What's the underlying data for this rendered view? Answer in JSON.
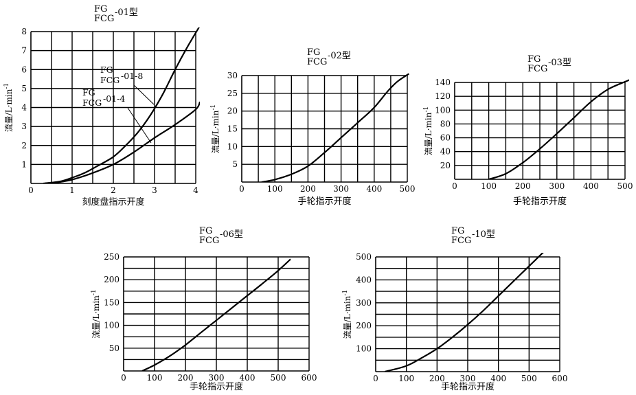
{
  "chart_data": [
    {
      "type": "line",
      "title": [
        "FG",
        "FCG",
        "-01型"
      ],
      "xlabel": "刻度盘指示开度",
      "ylabel": "流量/L·min",
      "ylabel_sup": "-1",
      "xlim": [
        0,
        4
      ],
      "ylim": [
        0,
        8
      ],
      "xticks": [
        0,
        1,
        2,
        3,
        4
      ],
      "yticks": [
        0,
        1,
        2,
        3,
        4,
        5,
        6,
        7,
        8
      ],
      "xtick_labels": [
        "0",
        "1",
        "2",
        "3",
        "4"
      ],
      "ytick_labels": [
        "",
        "1",
        "2",
        "3",
        "4",
        "5",
        "6",
        "7",
        "8"
      ],
      "grid_x": [
        0.5,
        1,
        1.5,
        2,
        2.5,
        3,
        3.5,
        4
      ],
      "grid_y": [
        1,
        2,
        3,
        4,
        5,
        6,
        7,
        8
      ],
      "grid": true,
      "series": [
        {
          "name": "FG FCG-01-8",
          "x": [
            0.3,
            0.7,
            1.0,
            1.3,
            1.6,
            2.0,
            2.3,
            2.6,
            2.9,
            3.2,
            3.5,
            3.8,
            4.1
          ],
          "y": [
            0,
            0.1,
            0.3,
            0.55,
            0.9,
            1.4,
            2.0,
            2.7,
            3.6,
            4.7,
            6.0,
            7.2,
            8.3
          ]
        },
        {
          "name": "FG FCG-01-4",
          "x": [
            0.5,
            1.0,
            1.5,
            2.0,
            2.5,
            3.0,
            3.5,
            4.0,
            4.1
          ],
          "y": [
            0,
            0.2,
            0.55,
            1.0,
            1.65,
            2.4,
            3.1,
            3.9,
            4.3
          ]
        }
      ],
      "annotations": [
        {
          "lines": [
            "FG",
            "FCG",
            "-01-8"
          ],
          "series": 0
        },
        {
          "lines": [
            "FG",
            "FCG",
            "-01-4"
          ],
          "series": 1
        }
      ]
    },
    {
      "type": "line",
      "title": [
        "FG",
        "FCG",
        "-02型"
      ],
      "xlabel": "手轮指示开度",
      "ylabel": "流量/L·min",
      "ylabel_sup": "-1",
      "xlim": [
        0,
        500
      ],
      "ylim": [
        0,
        30
      ],
      "xticks": [
        0,
        100,
        200,
        300,
        400,
        500
      ],
      "yticks": [
        0,
        5,
        10,
        15,
        20,
        25,
        30
      ],
      "xtick_labels": [
        "0",
        "100",
        "200",
        "300",
        "400",
        "500"
      ],
      "ytick_labels": [
        "",
        "5",
        "10",
        "15",
        "20",
        "25",
        "30"
      ],
      "grid_x": [
        50,
        100,
        150,
        200,
        250,
        300,
        350,
        400,
        450,
        500
      ],
      "grid_y": [
        5,
        10,
        15,
        20,
        25,
        30
      ],
      "grid": true,
      "series": [
        {
          "name": "",
          "x": [
            60,
            100,
            150,
            200,
            250,
            300,
            350,
            400,
            440,
            470,
            505
          ],
          "y": [
            0,
            0.7,
            2.2,
            4.5,
            8.3,
            12.5,
            16.7,
            21.0,
            25.5,
            28.3,
            30.5
          ]
        }
      ]
    },
    {
      "type": "line",
      "title": [
        "FG",
        "FCG",
        "-03型"
      ],
      "xlabel": "手轮指示开度",
      "ylabel": "流量/L·min",
      "ylabel_sup": "-1",
      "xlim": [
        0,
        500
      ],
      "ylim": [
        0,
        140
      ],
      "xticks": [
        0,
        100,
        200,
        300,
        400,
        500
      ],
      "yticks": [
        0,
        20,
        40,
        60,
        80,
        100,
        120,
        140
      ],
      "xtick_labels": [
        "0",
        "100",
        "200",
        "300",
        "400",
        "500"
      ],
      "ytick_labels": [
        "",
        "20",
        "40",
        "60",
        "80",
        "100",
        "120",
        "140"
      ],
      "grid_x": [
        50,
        100,
        150,
        200,
        250,
        300,
        350,
        400,
        450,
        500
      ],
      "grid_y": [
        20,
        40,
        60,
        80,
        100,
        120,
        140
      ],
      "grid": true,
      "series": [
        {
          "name": "",
          "x": [
            100,
            150,
            200,
            250,
            300,
            350,
            400,
            450,
            500,
            520
          ],
          "y": [
            0,
            8,
            24,
            44,
            66,
            89,
            112,
            130,
            141,
            145
          ]
        }
      ]
    },
    {
      "type": "line",
      "title": [
        "FG",
        "FCG",
        "-06型"
      ],
      "xlabel": "手轮指示开度",
      "ylabel": "流量/L·min",
      "ylabel_sup": "-1",
      "xlim": [
        0,
        600
      ],
      "ylim": [
        0,
        250
      ],
      "xticks": [
        0,
        100,
        200,
        300,
        400,
        500,
        600
      ],
      "yticks": [
        0,
        50,
        100,
        150,
        200,
        250
      ],
      "xtick_labels": [
        "0",
        "100",
        "200",
        "300",
        "400",
        "500",
        "600"
      ],
      "ytick_labels": [
        "",
        "50",
        "100",
        "150",
        "200",
        "250"
      ],
      "grid_x": [
        100,
        200,
        300,
        400,
        500,
        600
      ],
      "grid_y": [
        25,
        50,
        75,
        100,
        125,
        150,
        175,
        200,
        225,
        250
      ],
      "grid": true,
      "series": [
        {
          "name": "",
          "x": [
            60,
            100,
            150,
            200,
            250,
            300,
            350,
            400,
            450,
            500,
            540
          ],
          "y": [
            0,
            13,
            33,
            57,
            84,
            111,
            138,
            165,
            192,
            220,
            245
          ]
        }
      ]
    },
    {
      "type": "line",
      "title": [
        "FG",
        "FCG",
        "-10型"
      ],
      "xlabel": "手轮指示开度",
      "ylabel": "流量/L·min",
      "ylabel_sup": "-1",
      "xlim": [
        0,
        600
      ],
      "ylim": [
        0,
        500
      ],
      "xticks": [
        0,
        100,
        200,
        300,
        400,
        500,
        600
      ],
      "yticks": [
        0,
        100,
        200,
        300,
        400,
        500
      ],
      "xtick_labels": [
        "0",
        "100",
        "200",
        "300",
        "400",
        "500",
        "600"
      ],
      "ytick_labels": [
        "",
        "100",
        "200",
        "300",
        "400",
        "500"
      ],
      "grid_x": [
        100,
        200,
        300,
        400,
        500,
        600
      ],
      "grid_y": [
        50,
        100,
        150,
        200,
        250,
        300,
        350,
        400,
        450,
        500
      ],
      "grid": true,
      "series": [
        {
          "name": "",
          "x": [
            30,
            100,
            150,
            200,
            250,
            300,
            350,
            400,
            450,
            500,
            550
          ],
          "y": [
            0,
            25,
            60,
            100,
            150,
            205,
            265,
            330,
            395,
            460,
            525
          ]
        }
      ]
    }
  ]
}
